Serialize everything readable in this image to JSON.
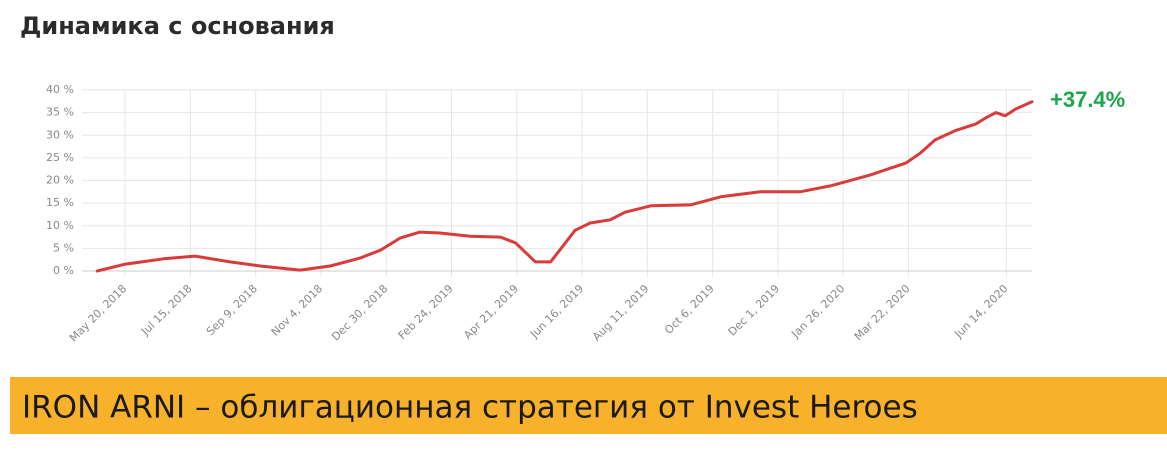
{
  "title": "Динамика с основания",
  "chart_data": {
    "type": "line",
    "color": "#d93a3a",
    "grid": true,
    "annotation": "+37.4%",
    "x": [
      "2018-04-26",
      "2018-05-20",
      "2018-06-22",
      "2018-07-19",
      "2018-08-18",
      "2018-09-13",
      "2018-10-17",
      "2018-11-12",
      "2018-12-08",
      "2018-12-25",
      "2019-01-11",
      "2019-01-28",
      "2019-02-14",
      "2019-03-12",
      "2019-04-07",
      "2019-04-20",
      "2019-05-07",
      "2019-05-20",
      "2019-06-10",
      "2019-06-23",
      "2019-07-10",
      "2019-07-23",
      "2019-08-14",
      "2019-09-17",
      "2019-10-13",
      "2019-11-16",
      "2019-12-20",
      "2020-01-15",
      "2020-02-18",
      "2020-03-20",
      "2020-04-01",
      "2020-04-14",
      "2020-05-01",
      "2020-05-19",
      "2020-05-27",
      "2020-06-05",
      "2020-06-13",
      "2020-06-22",
      "2020-07-06"
    ],
    "values": [
      0,
      1.5,
      2.7,
      3.3,
      2,
      1.1,
      0.2,
      1.1,
      2.9,
      4.6,
      7.3,
      8.6,
      8.4,
      7.7,
      7.5,
      6.2,
      2,
      2,
      9,
      10.6,
      11.3,
      13,
      14.4,
      14.6,
      16.4,
      17.5,
      17.5,
      18.8,
      21.2,
      23.9,
      26,
      29,
      31,
      32.5,
      33.8,
      35,
      34.3,
      35.8,
      37.4
    ],
    "xlim": [
      "2018-04-13",
      "2020-07-06"
    ],
    "xticks": [
      {
        "value": "2018-05-20",
        "label": "May 20, 2018"
      },
      {
        "value": "2018-07-15",
        "label": "Jul 15, 2018"
      },
      {
        "value": "2018-09-09",
        "label": "Sep 9, 2018"
      },
      {
        "value": "2018-11-04",
        "label": "Nov 4, 2018"
      },
      {
        "value": "2018-12-30",
        "label": "Dec 30, 2018"
      },
      {
        "value": "2019-02-24",
        "label": "Feb 24, 2019"
      },
      {
        "value": "2019-04-21",
        "label": "Apr 21, 2019"
      },
      {
        "value": "2019-06-16",
        "label": "Jun 16, 2019"
      },
      {
        "value": "2019-08-11",
        "label": "Aug 11, 2019"
      },
      {
        "value": "2019-10-06",
        "label": "Oct 6, 2019"
      },
      {
        "value": "2019-12-01",
        "label": "Dec 1, 2019"
      },
      {
        "value": "2020-01-26",
        "label": "Jan 26, 2020"
      },
      {
        "value": "2020-03-22",
        "label": "Mar 22, 2020"
      },
      {
        "value": "2020-06-14",
        "label": "Jun 14, 2020"
      }
    ],
    "ylim": [
      0,
      40
    ],
    "yticks": [
      {
        "value": 0,
        "label": "0 %"
      },
      {
        "value": 5,
        "label": "5 %"
      },
      {
        "value": 10,
        "label": "10 %"
      },
      {
        "value": 15,
        "label": "15 %"
      },
      {
        "value": 20,
        "label": "20 %"
      },
      {
        "value": 25,
        "label": "25 %"
      },
      {
        "value": 30,
        "label": "30 %"
      },
      {
        "value": 35,
        "label": "35 %"
      },
      {
        "value": 40,
        "label": "40 %"
      }
    ]
  },
  "banner": "IRON ARNI – облигационная стратегия от Invest Heroes"
}
